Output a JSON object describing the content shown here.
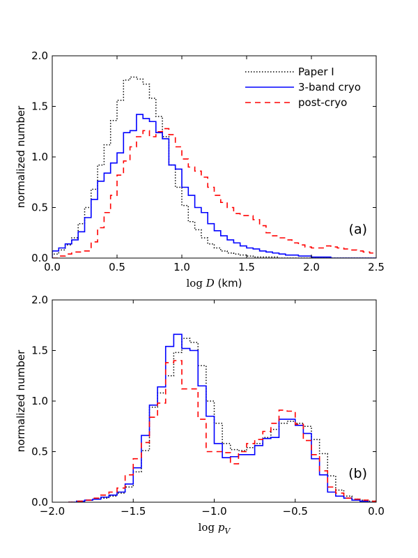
{
  "chart_data": [
    {
      "type": "histogram",
      "panel_label": "(a)",
      "xlabel": "log D (km)",
      "xlabel_parts": {
        "prefix": "log ",
        "var": "D",
        "unit": " (km)"
      },
      "ylabel": "normalized number",
      "xlim": [
        0.0,
        2.5
      ],
      "ylim": [
        0.0,
        2.0
      ],
      "xticks": [
        "0.0",
        "0.5",
        "1.0",
        "1.5",
        "2.0",
        "2.5"
      ],
      "yticks": [
        "0.0",
        "0.5",
        "1.0",
        "1.5",
        "2.0"
      ],
      "legend": {
        "position": "top-right"
      },
      "series": [
        {
          "name": "Paper I",
          "color": "#000000",
          "style": "dotted",
          "bin_start": 0.0,
          "bin_width": 0.05,
          "values": [
            0.04,
            0.08,
            0.13,
            0.2,
            0.34,
            0.5,
            0.68,
            0.92,
            1.12,
            1.36,
            1.56,
            1.76,
            1.79,
            1.77,
            1.72,
            1.58,
            1.4,
            1.2,
            0.92,
            0.7,
            0.52,
            0.36,
            0.28,
            0.2,
            0.14,
            0.1,
            0.07,
            0.05,
            0.04,
            0.03,
            0.02,
            0.01,
            0.01,
            0.01,
            0.01,
            0.0,
            0.0,
            0.0,
            0.0,
            0.0,
            0.0,
            0.0,
            0.0,
            0.0,
            0.0,
            0.0,
            0.0,
            0.0,
            0.0,
            0.0
          ]
        },
        {
          "name": "3-band cryo",
          "color": "#0000ff",
          "style": "solid",
          "bin_start": 0.0,
          "bin_width": 0.05,
          "values": [
            0.07,
            0.1,
            0.14,
            0.18,
            0.26,
            0.4,
            0.58,
            0.76,
            0.84,
            0.94,
            1.04,
            1.24,
            1.26,
            1.42,
            1.38,
            1.35,
            1.24,
            1.18,
            0.92,
            0.88,
            0.7,
            0.62,
            0.5,
            0.45,
            0.34,
            0.27,
            0.22,
            0.18,
            0.15,
            0.12,
            0.1,
            0.09,
            0.07,
            0.06,
            0.05,
            0.04,
            0.03,
            0.03,
            0.02,
            0.02,
            0.01,
            0.01,
            0.01,
            0.0,
            0.0,
            0.0,
            0.0,
            0.0,
            0.0,
            0.0
          ]
        },
        {
          "name": "post-cryo",
          "color": "#ff0000",
          "style": "dashed",
          "bin_start": 0.0,
          "bin_width": 0.05,
          "values": [
            0.0,
            0.02,
            0.04,
            0.06,
            0.06,
            0.07,
            0.16,
            0.3,
            0.45,
            0.62,
            0.82,
            0.96,
            1.1,
            1.2,
            1.26,
            1.2,
            1.25,
            1.28,
            1.22,
            1.1,
            0.98,
            0.9,
            0.86,
            0.8,
            0.7,
            0.62,
            0.55,
            0.5,
            0.44,
            0.42,
            0.42,
            0.38,
            0.32,
            0.25,
            0.22,
            0.2,
            0.18,
            0.15,
            0.13,
            0.11,
            0.1,
            0.1,
            0.12,
            0.11,
            0.1,
            0.09,
            0.08,
            0.07,
            0.06,
            0.05
          ]
        }
      ]
    },
    {
      "type": "histogram",
      "panel_label": "(b)",
      "xlabel": "log pV",
      "xlabel_parts": {
        "prefix": "log ",
        "var": "p",
        "sub": "V"
      },
      "ylabel": "normalized number",
      "xlim": [
        -2.0,
        0.0
      ],
      "ylim": [
        0.0,
        2.0
      ],
      "xticks": [
        "−2.0",
        "−1.5",
        "−1.0",
        "−0.5",
        "0.0"
      ],
      "xtick_values": [
        -2.0,
        -1.5,
        -1.0,
        -0.5,
        0.0
      ],
      "yticks": [
        "0.0",
        "0.5",
        "1.0",
        "1.5",
        "2.0"
      ],
      "series": [
        {
          "name": "Paper I",
          "color": "#000000",
          "style": "dotted",
          "bin_start": -1.9,
          "bin_width": 0.05,
          "values": [
            0.0,
            0.01,
            0.02,
            0.03,
            0.04,
            0.06,
            0.09,
            0.15,
            0.3,
            0.51,
            0.94,
            1.08,
            1.25,
            1.48,
            1.62,
            1.58,
            1.35,
            1.0,
            0.78,
            0.58,
            0.52,
            0.51,
            0.54,
            0.58,
            0.64,
            0.72,
            0.78,
            0.8,
            0.78,
            0.75,
            0.62,
            0.48,
            0.26,
            0.12,
            0.06,
            0.03,
            0.02,
            0.01
          ]
        },
        {
          "name": "3-band cryo",
          "color": "#0000ff",
          "style": "solid",
          "bin_start": -1.9,
          "bin_width": 0.05,
          "values": [
            0.0,
            0.01,
            0.02,
            0.03,
            0.05,
            0.07,
            0.1,
            0.18,
            0.34,
            0.66,
            0.96,
            1.14,
            1.54,
            1.66,
            1.52,
            1.5,
            1.15,
            0.85,
            0.58,
            0.44,
            0.45,
            0.47,
            0.47,
            0.56,
            0.63,
            0.64,
            0.82,
            0.82,
            0.76,
            0.68,
            0.43,
            0.27,
            0.1,
            0.06,
            0.04,
            0.02,
            0.01,
            0.0
          ]
        },
        {
          "name": "post-cryo",
          "color": "#ff0000",
          "style": "dashed",
          "bin_start": -1.9,
          "bin_width": 0.05,
          "values": [
            0.0,
            0.01,
            0.02,
            0.04,
            0.07,
            0.1,
            0.14,
            0.27,
            0.43,
            0.59,
            0.84,
            0.98,
            1.38,
            1.4,
            1.12,
            1.12,
            0.82,
            0.5,
            0.5,
            0.49,
            0.38,
            0.5,
            0.58,
            0.62,
            0.7,
            0.78,
            0.91,
            0.9,
            0.77,
            0.61,
            0.47,
            0.31,
            0.15,
            0.09,
            0.04,
            0.03,
            0.02,
            0.01
          ]
        }
      ]
    }
  ]
}
